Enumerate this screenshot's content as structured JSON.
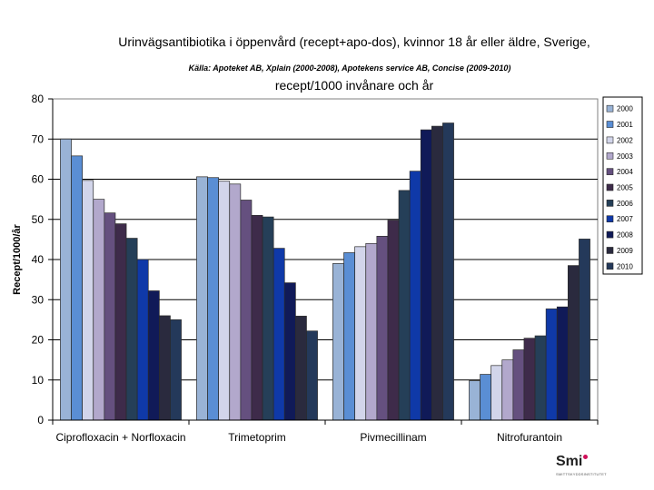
{
  "logo": {
    "text": "Smi",
    "tagline": "SMITTSKYDDSINSTITUTET"
  },
  "chart_data": {
    "type": "bar",
    "title_line1": "Urinvägsantibiotika i öppenvård (recept+apo-dos), kvinnor 18 år eller äldre, Sverige,",
    "title_line2": "recept/1000 invånare och år",
    "subtitle": "Källa: Apoteket AB, Xplain (2000-2008), Apotekens service AB, Concise (2009-2010)",
    "xlabel": "",
    "ylabel": "Recept/1000/år",
    "ylim": [
      0,
      80
    ],
    "yticks": [
      0,
      10,
      20,
      30,
      40,
      50,
      60,
      70,
      80
    ],
    "grid": true,
    "legend_position": "right",
    "categories": [
      "Ciprofloxacin + Norfloxacin",
      "Trimetoprim",
      "Pivmecillinam",
      "Nitrofurantoin"
    ],
    "series": [
      {
        "name": "2000",
        "color": "#99b3d6",
        "values": [
          70,
          60.6,
          39,
          9.8
        ]
      },
      {
        "name": "2001",
        "color": "#5a8ed4",
        "values": [
          65.8,
          60.4,
          41.7,
          11.4
        ]
      },
      {
        "name": "2002",
        "color": "#d2d5ea",
        "values": [
          59.7,
          59.5,
          43.2,
          13.6
        ]
      },
      {
        "name": "2003",
        "color": "#b2a8cc",
        "values": [
          55,
          58.8,
          44,
          15
        ]
      },
      {
        "name": "2004",
        "color": "#65507f",
        "values": [
          51.6,
          54.8,
          45.8,
          17.5
        ]
      },
      {
        "name": "2005",
        "color": "#3e2b4a",
        "values": [
          48.9,
          51,
          49.8,
          20.4
        ]
      },
      {
        "name": "2006",
        "color": "#253f58",
        "values": [
          45.3,
          50.6,
          57.2,
          21
        ]
      },
      {
        "name": "2007",
        "color": "#0f39a8",
        "values": [
          40,
          42.8,
          62,
          27.7
        ]
      },
      {
        "name": "2008",
        "color": "#101a58",
        "values": [
          32.2,
          34.2,
          72.3,
          28.2
        ]
      },
      {
        "name": "2009",
        "color": "#2a2a3e",
        "values": [
          26,
          25.9,
          73.2,
          38.5
        ]
      },
      {
        "name": "2010",
        "color": "#24395a",
        "values": [
          25,
          22.2,
          74,
          45.1
        ]
      }
    ]
  }
}
